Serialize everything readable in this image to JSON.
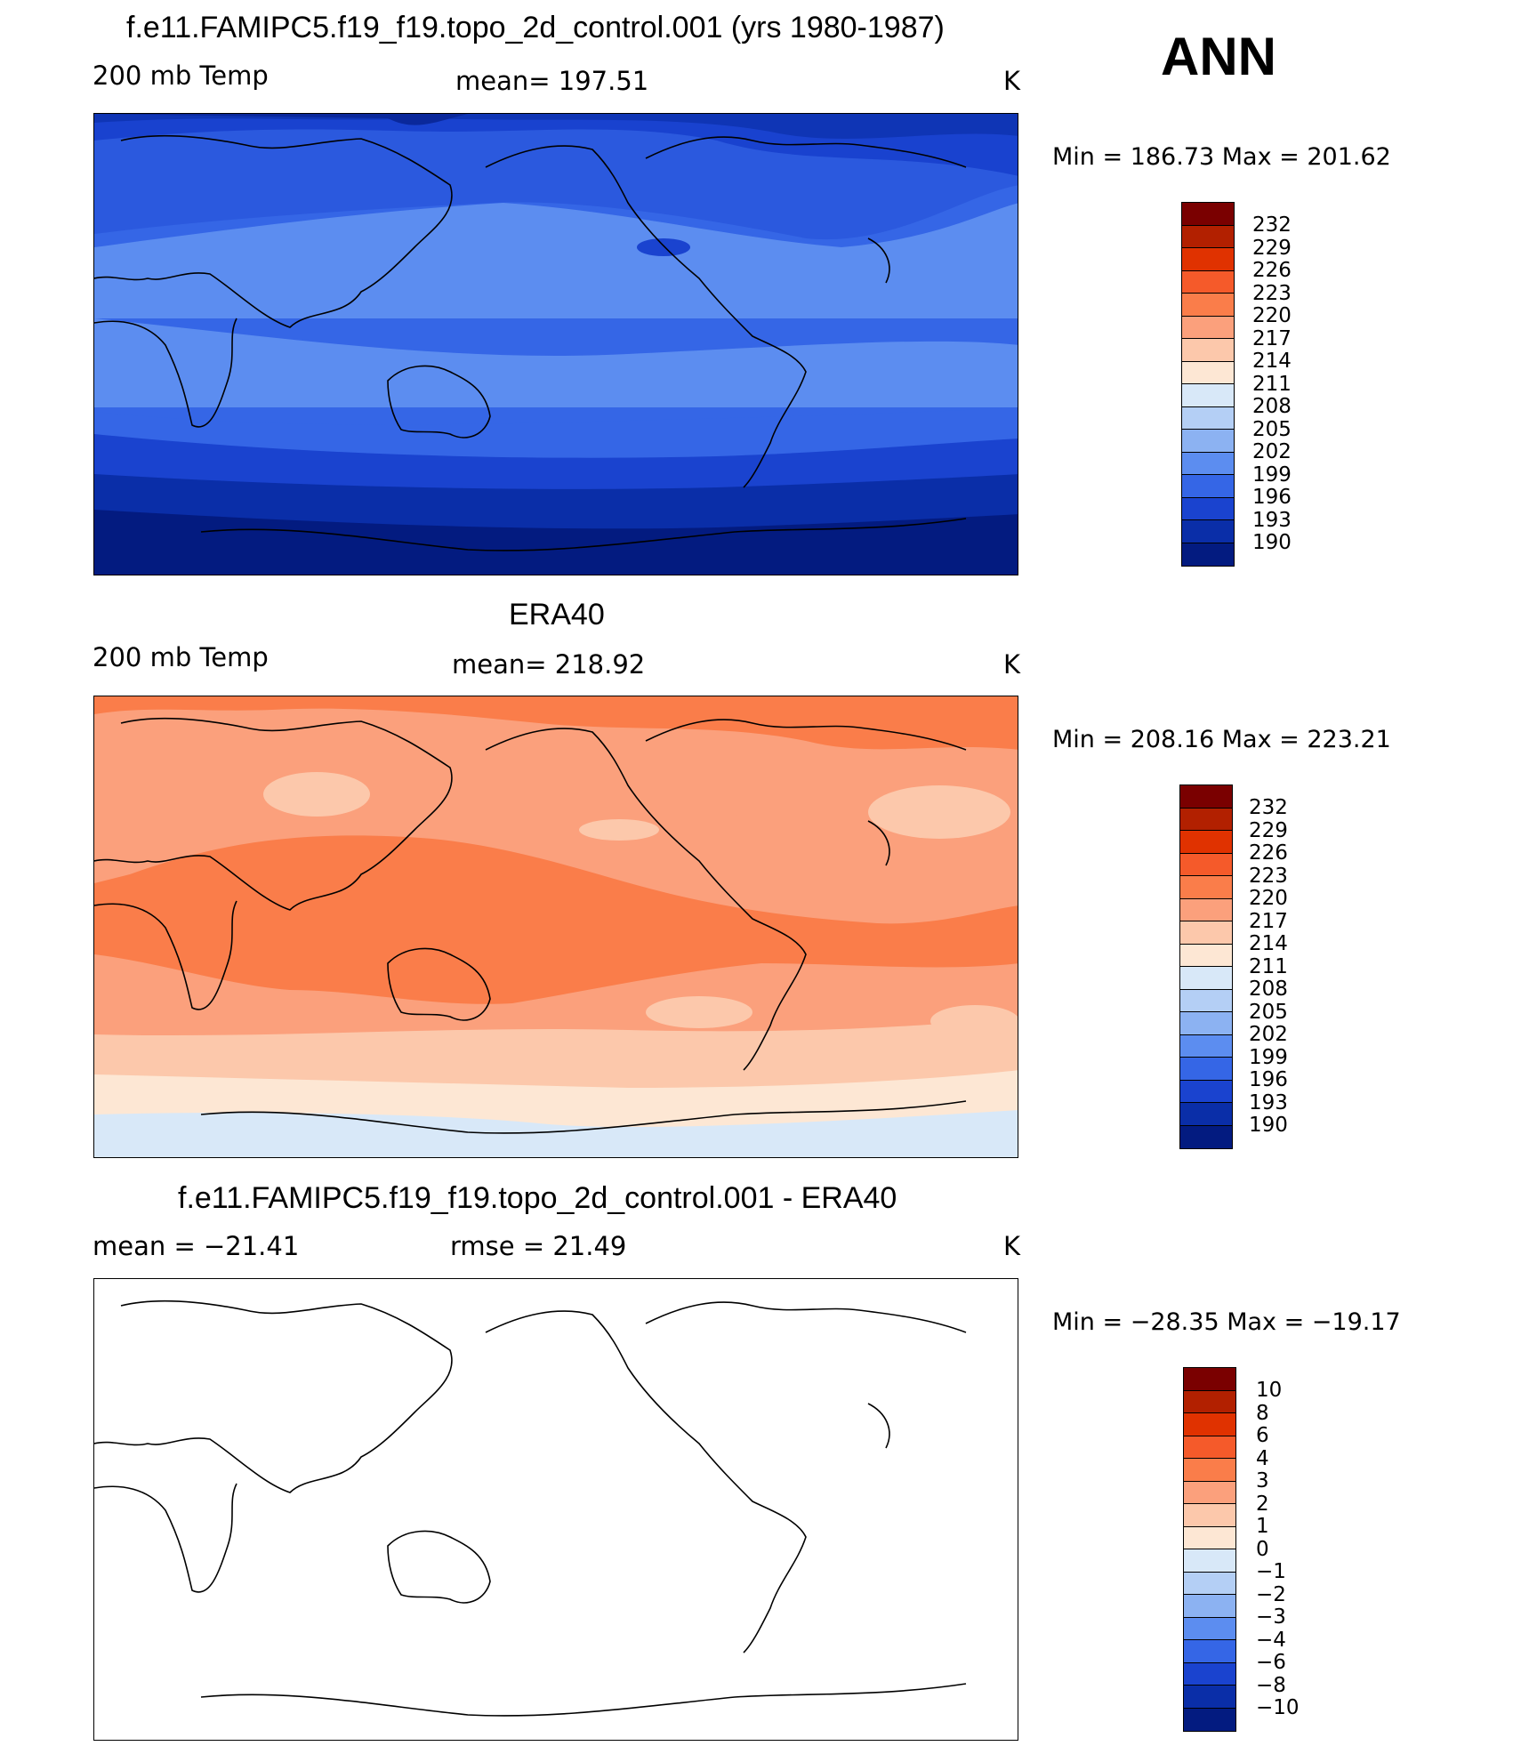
{
  "season": "ANN",
  "panels": [
    {
      "title": "f.e11.FAMIPC5.f19_f19.topo_2d_control.001 (yrs 1980-1987)",
      "left_label": "200 mb Temp",
      "center_label": "mean=  197.51",
      "units": "K",
      "minmax": "Min  =  186.73  Max  =  201.62",
      "mean_value": 197.51,
      "min_value": 186.73,
      "max_value": 201.62
    },
    {
      "title": "ERA40",
      "left_label": "200 mb Temp",
      "center_label": "mean=  218.92",
      "units": "K",
      "minmax": "Min  =  208.16  Max  =  223.21",
      "mean_value": 218.92,
      "min_value": 208.16,
      "max_value": 223.21
    },
    {
      "title": "f.e11.FAMIPC5.f19_f19.topo_2d_control.001 - ERA40",
      "left_label": "mean  =  −21.41",
      "center_label": "rmse  =    21.49",
      "units": "K",
      "minmax": "Min  =  −28.35  Max  =  −19.17",
      "mean_value": -21.41,
      "rmse_value": 21.49,
      "min_value": -28.35,
      "max_value": -19.17
    }
  ],
  "colorbars": {
    "temp_levels": [
      "232",
      "229",
      "226",
      "223",
      "220",
      "217",
      "214",
      "211",
      "208",
      "205",
      "202",
      "199",
      "196",
      "193",
      "190"
    ],
    "diff_levels": [
      "10",
      "8",
      "6",
      "4",
      "3",
      "2",
      "1",
      "0",
      "−1",
      "−2",
      "−3",
      "−4",
      "−6",
      "−8",
      "−10"
    ],
    "colors": [
      "#7a0000",
      "#b22000",
      "#e03200",
      "#f55a2a",
      "#fa7d4a",
      "#fba07c",
      "#fcc8ab",
      "#fde7d4",
      "#d8e8f8",
      "#b4cff5",
      "#8cb2f2",
      "#5c8df0",
      "#3566e6",
      "#1a43cf",
      "#0a2ea8",
      "#031b80"
    ]
  },
  "map_colors": {
    "model": {
      "band_dark": "#031b80",
      "band_1": "#0a2ea8",
      "band_2": "#1a43cf",
      "band_3": "#3566e6",
      "band_4": "#5c8df0"
    },
    "obs": {
      "band_cold": "#d8e8f8",
      "band_1": "#fde7d4",
      "band_2": "#fcc8ab",
      "band_3": "#fba07c",
      "band_4": "#fa7d4a"
    }
  }
}
